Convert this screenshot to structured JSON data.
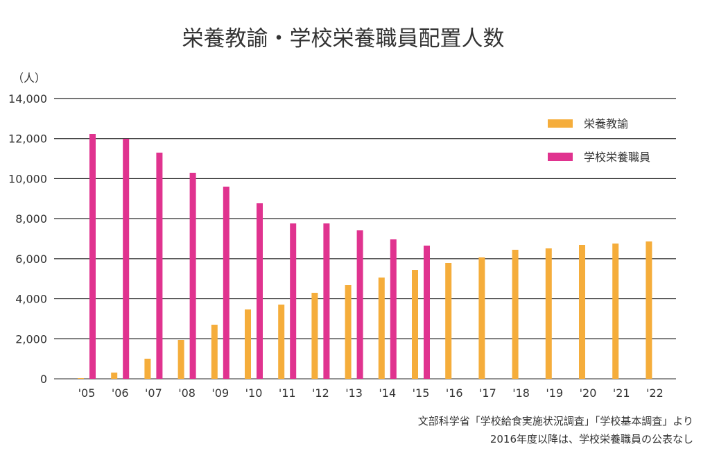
{
  "chart_data": {
    "type": "bar",
    "title": "栄養教諭・学校栄養職員配置人数",
    "ylabel": "（人）",
    "xlabel": "",
    "ylim": [
      0,
      14000
    ],
    "yticks": [
      0,
      2000,
      4000,
      6000,
      8000,
      10000,
      12000,
      14000
    ],
    "ytick_labels": [
      "0",
      "2,000",
      "4,000",
      "6,000",
      "8,000",
      "10,000",
      "12,000",
      "14,000"
    ],
    "grid": true,
    "legend_position": "top-right",
    "categories": [
      "'05",
      "'06",
      "'07",
      "'08",
      "'09",
      "'10",
      "'11",
      "'12",
      "'13",
      "'14",
      "'15",
      "'16",
      "'17",
      "'18",
      "'19",
      "'20",
      "'21",
      "'22"
    ],
    "series": [
      {
        "name": "栄養教諭",
        "color": "#f5ad3b",
        "values": [
          34,
          312,
          1005,
          1941,
          2703,
          3465,
          3708,
          4297,
          4678,
          5059,
          5440,
          5787,
          6064,
          6446,
          6515,
          6688,
          6757,
          6861
        ]
      },
      {
        "name": "学校栄養職員",
        "color": "#e0338f",
        "values": [
          12232,
          11990,
          11297,
          10292,
          9599,
          8767,
          7762,
          7762,
          7416,
          6965,
          6653,
          null,
          null,
          null,
          null,
          null,
          null,
          null
        ]
      }
    ],
    "notes": [
      "文部科学省「学校給食実施状況調査」「学校基本調査」より",
      "2016年度以降は、学校栄養職員の公表なし"
    ]
  }
}
